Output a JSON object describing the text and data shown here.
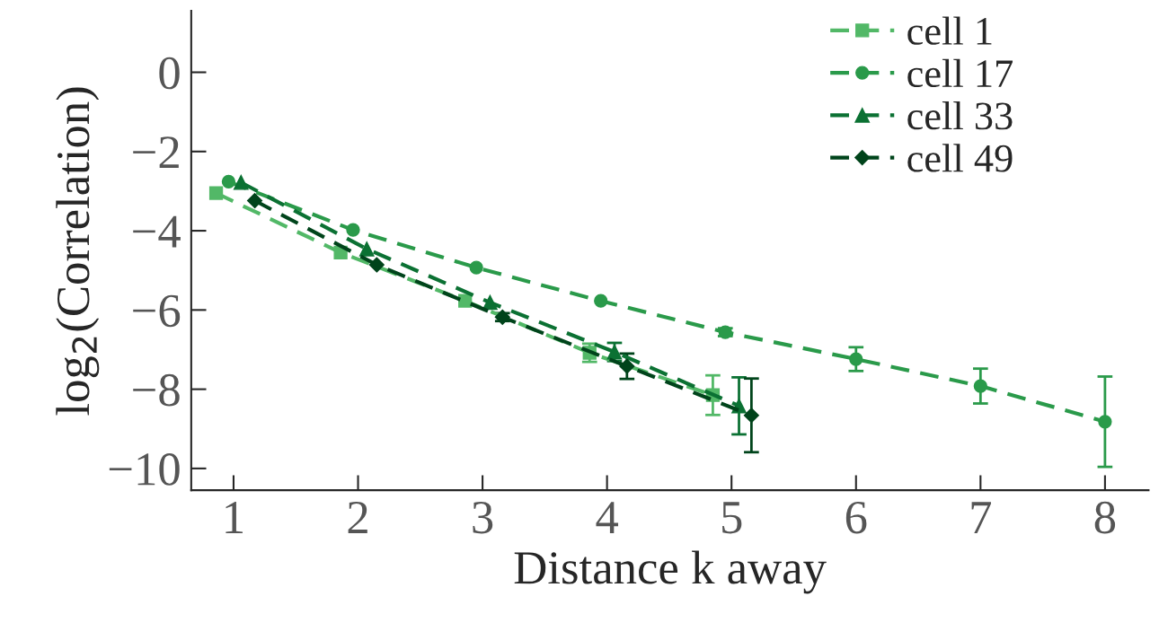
{
  "chart_data": {
    "type": "line",
    "xlabel": "Distance k away",
    "ylabel": "log$_{2}$(Correlation)",
    "xlim": [
      0.66,
      8.35
    ],
    "ylim": [
      -10.55,
      1.55
    ],
    "xticks": [
      1,
      2,
      3,
      4,
      5,
      6,
      7,
      8
    ],
    "yticks": [
      {
        "value": -10,
        "label": "−10"
      },
      {
        "value": -8,
        "label": "−8"
      },
      {
        "value": -6,
        "label": "−6"
      },
      {
        "value": -4,
        "label": "−4"
      },
      {
        "value": -2,
        "label": "−2"
      },
      0
    ],
    "legend": "top right",
    "grid": false,
    "line_style": "dashed",
    "series": [
      {
        "name": "cell 1",
        "color": "#52b867",
        "marker": "square",
        "x": [
          0.86,
          1.86,
          2.86,
          3.86,
          4.85
        ],
        "values": [
          -3.05,
          -4.55,
          -5.77,
          -7.08,
          -8.15
        ],
        "errors": [
          null,
          null,
          null,
          0.23,
          0.5
        ]
      },
      {
        "name": "cell 17",
        "color": "#2a9a4a",
        "marker": "circle",
        "x": [
          0.96,
          1.96,
          2.95,
          3.95,
          4.95,
          6,
          7,
          8
        ],
        "values": [
          -2.76,
          -3.98,
          -4.93,
          -5.77,
          -6.56,
          -7.24,
          -7.92,
          -8.82
        ],
        "errors": [
          null,
          null,
          null,
          null,
          0.1,
          0.3,
          0.44,
          1.14
        ]
      },
      {
        "name": "cell 33",
        "color": "#0b7133",
        "marker": "triangle",
        "x": [
          1.06,
          2.07,
          3.06,
          4.06,
          5.06
        ],
        "values": [
          -2.78,
          -4.46,
          -5.81,
          -7.06,
          -8.42
        ],
        "errors": [
          null,
          null,
          null,
          0.23,
          0.72
        ]
      },
      {
        "name": "cell 49",
        "color": "#00441b",
        "marker": "diamond",
        "x": [
          1.17,
          2.15,
          3.16,
          4.16,
          5.16
        ],
        "values": [
          -3.24,
          -4.86,
          -6.18,
          -7.42,
          -8.66
        ],
        "errors": [
          null,
          null,
          0.1,
          0.32,
          0.93
        ]
      }
    ]
  }
}
